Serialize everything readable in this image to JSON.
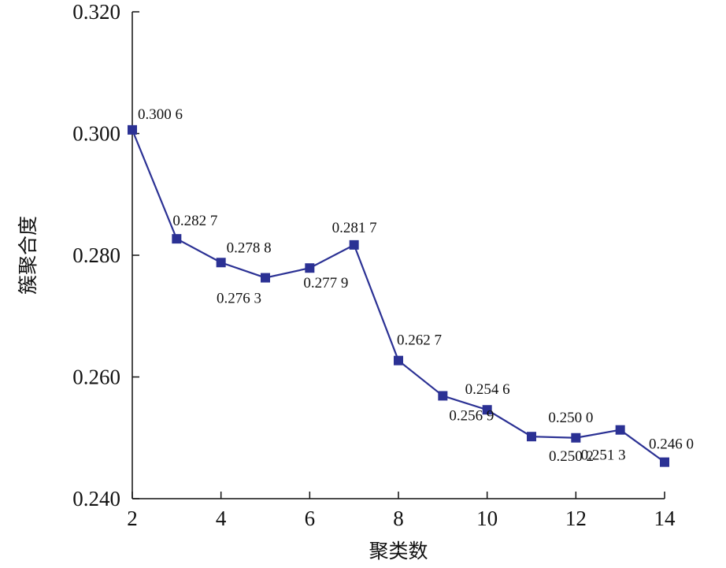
{
  "chart_data": {
    "type": "line",
    "title": "",
    "xlabel": "聚类数",
    "ylabel": "簇聚合度",
    "xlim": [
      2,
      14
    ],
    "ylim": [
      0.24,
      0.32
    ],
    "grid": false,
    "legend": "none",
    "x_ticks": [
      "2",
      "4",
      "6",
      "8",
      "10",
      "12",
      "14"
    ],
    "y_ticks": [
      "0.240",
      "0.260",
      "0.280",
      "0.300",
      "0.320"
    ],
    "series": [
      {
        "color": "#2B3194",
        "marker": "square",
        "x": [
          2,
          3,
          4,
          5,
          6,
          7,
          8,
          9,
          10,
          11,
          12,
          13,
          14
        ],
        "values": [
          0.3006,
          0.2827,
          0.2788,
          0.2763,
          0.2779,
          0.2817,
          0.2627,
          0.2569,
          0.2546,
          0.2502,
          0.25,
          0.2513,
          0.246
        ],
        "point_labels": [
          "0.300 6",
          "0.282 7",
          "0.278 8",
          "0.276 3",
          "0.277 9",
          "0.281 7",
          "0.262 7",
          "0.256 9",
          "0.254 6",
          "0.250 2",
          "0.250 0",
          "0.251 3",
          "0.246 0"
        ]
      }
    ]
  }
}
